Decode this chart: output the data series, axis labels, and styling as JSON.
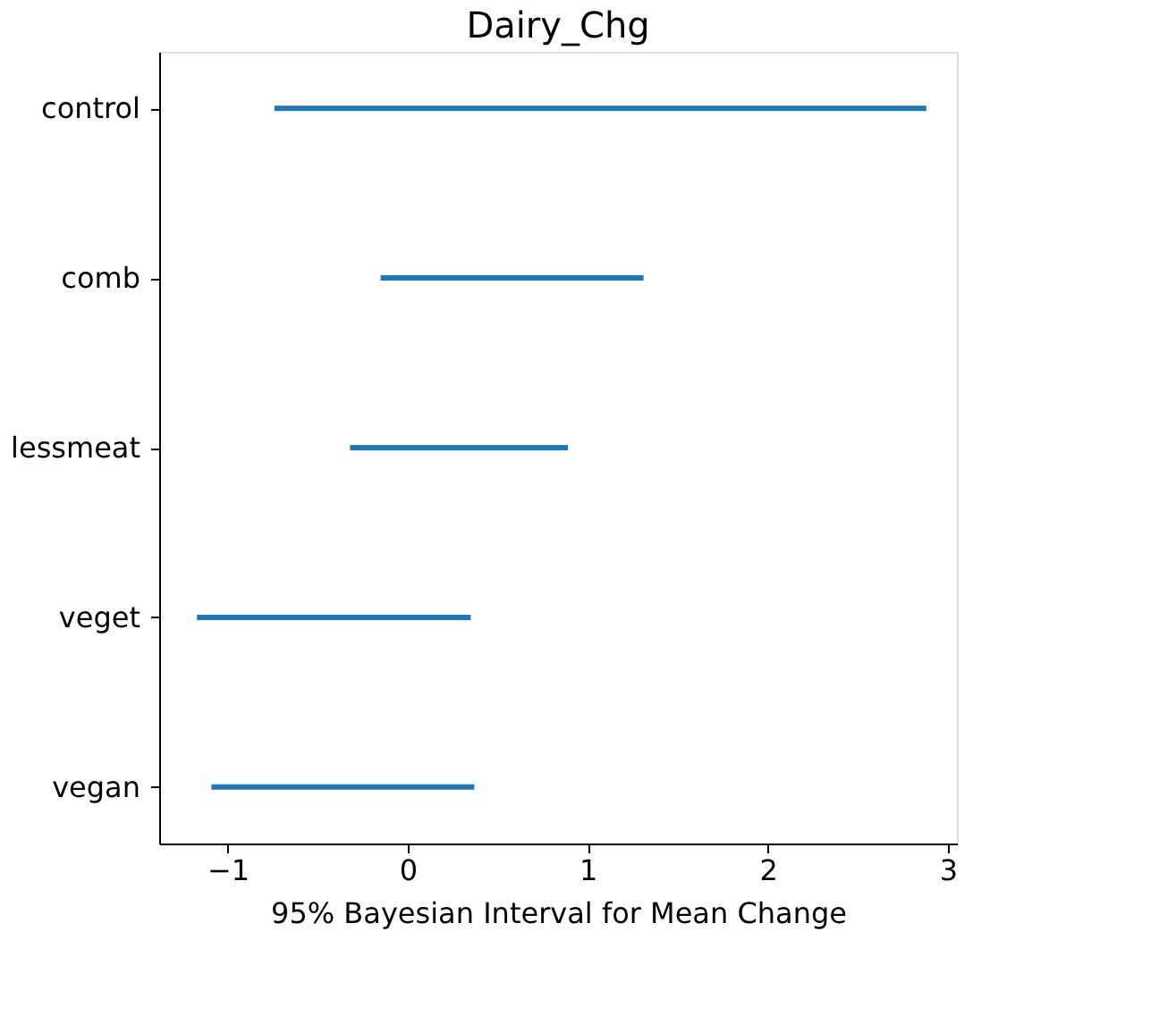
{
  "chart_data": {
    "type": "bar",
    "orientation": "horizontal",
    "title": "Dairy_Chg",
    "xlabel": "95% Bayesian Interval for Mean Change",
    "categories": [
      "control",
      "comb",
      "lessmeat",
      "veget",
      "vegan"
    ],
    "base": [
      -0.74,
      -0.15,
      -0.32,
      -1.17,
      -1.09
    ],
    "values": [
      3.62,
      1.46,
      1.21,
      1.52,
      1.46
    ],
    "color": "#1f77b4",
    "xlim": [
      -1.38,
      3.05
    ],
    "xticks": [
      -1,
      0,
      1,
      2,
      3
    ],
    "grid": false
  }
}
